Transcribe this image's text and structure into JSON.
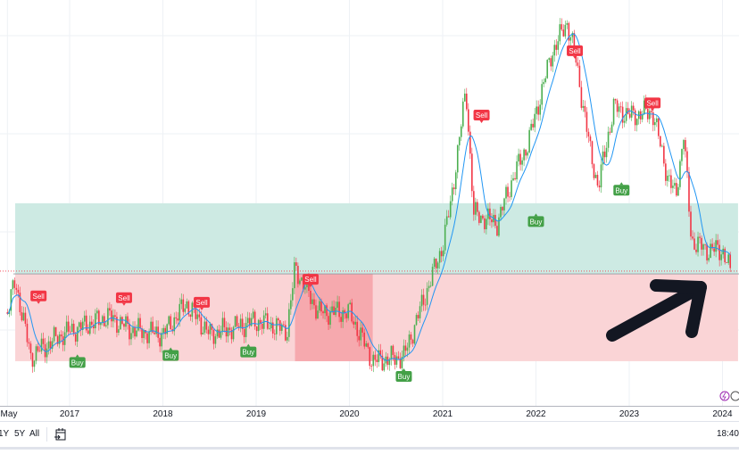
{
  "chart_data": {
    "type": "candlestick",
    "title": "",
    "xlabel": "",
    "ylabel": "",
    "x_tick_labels": [
      "May",
      "2017",
      "2018",
      "2019",
      "2020",
      "2021",
      "2022",
      "2023",
      "2024"
    ],
    "x_tick_dates": [
      "2016-05",
      "2017-01",
      "2018-01",
      "2019-01",
      "2020-01",
      "2021-01",
      "2022-01",
      "2023-01",
      "2024-01"
    ],
    "xlim": [
      "2016-04",
      "2024-03"
    ],
    "ylim": [
      0,
      100
    ],
    "grid": true,
    "price_path": [
      [
        "2016-05",
        15.4
      ],
      [
        "2016-06",
        24.4
      ],
      [
        "2016-08",
        2.6
      ],
      [
        "2016-12",
        9.0
      ],
      [
        "2017-06",
        14.1
      ],
      [
        "2017-09",
        10.3
      ],
      [
        "2018-01",
        9.0
      ],
      [
        "2018-04",
        17.9
      ],
      [
        "2018-07",
        9.0
      ],
      [
        "2019-01",
        12.8
      ],
      [
        "2019-05",
        10.3
      ],
      [
        "2019-06",
        28.2
      ],
      [
        "2019-09",
        15.4
      ],
      [
        "2020-01",
        15.4
      ],
      [
        "2020-04",
        1.3
      ],
      [
        "2020-08",
        2.6
      ],
      [
        "2020-10",
        15.4
      ],
      [
        "2021-01",
        34.6
      ],
      [
        "2021-02",
        46.2
      ],
      [
        "2021-04",
        79.5
      ],
      [
        "2021-05",
        43.6
      ],
      [
        "2021-08",
        41.0
      ],
      [
        "2021-10",
        53.8
      ],
      [
        "2021-12",
        64.1
      ],
      [
        "2022-03",
        89.7
      ],
      [
        "2022-05",
        98.7
      ],
      [
        "2022-06",
        89.7
      ],
      [
        "2022-08",
        61.5
      ],
      [
        "2022-09",
        51.3
      ],
      [
        "2022-11",
        74.4
      ],
      [
        "2023-01",
        71.8
      ],
      [
        "2023-04",
        73.1
      ],
      [
        "2023-06",
        53.8
      ],
      [
        "2023-07",
        48.7
      ],
      [
        "2023-08",
        66.7
      ],
      [
        "2023-09",
        35.9
      ],
      [
        "2023-11",
        33.3
      ],
      [
        "2024-01",
        33.3
      ],
      [
        "2024-02",
        26.9
      ]
    ],
    "zones": [
      {
        "label": "upper",
        "from": 26.4,
        "to": 46.7,
        "start": "2016-06",
        "end": "2024-03",
        "color": "#cdeae3"
      },
      {
        "label": "lower",
        "from": 1.3,
        "to": 26.4,
        "start": "2016-06",
        "end": "2024-03",
        "color": "#fad4d6"
      },
      {
        "label": "lower-highlight",
        "from": 1.3,
        "to": 26.4,
        "start": "2019-06",
        "end": "2020-04",
        "color": "#f6a9ae"
      }
    ],
    "reference_line": 27.2,
    "signals": [
      {
        "type": "Sell",
        "date": "2016-09",
        "value": 18.0
      },
      {
        "type": "Buy",
        "date": "2017-02",
        "value": 3.5
      },
      {
        "type": "Sell",
        "date": "2017-08",
        "value": 17.5
      },
      {
        "type": "Buy",
        "date": "2018-02",
        "value": 5.5
      },
      {
        "type": "Sell",
        "date": "2018-06",
        "value": 16.2
      },
      {
        "type": "Buy",
        "date": "2018-12",
        "value": 6.5
      },
      {
        "type": "Sell",
        "date": "2019-08",
        "value": 22.8
      },
      {
        "type": "Buy",
        "date": "2020-08",
        "value": -0.5
      },
      {
        "type": "Sell",
        "date": "2021-06",
        "value": 70.0
      },
      {
        "type": "Buy",
        "date": "2022-01",
        "value": 44.0
      },
      {
        "type": "Sell",
        "date": "2022-06",
        "value": 88.5
      },
      {
        "type": "Buy",
        "date": "2022-12",
        "value": 53.0
      },
      {
        "type": "Sell",
        "date": "2023-04",
        "value": 73.5
      }
    ],
    "colors": {
      "up": "#4caf50",
      "down": "#f23645",
      "ma": "#2196f3",
      "sell": "#f23645",
      "buy": "#43a047"
    }
  },
  "toolbar": {
    "ranges": [
      "1Y",
      "5Y",
      "All"
    ],
    "time": "18:40",
    "calendar_icon": "calendar-goto-icon"
  }
}
